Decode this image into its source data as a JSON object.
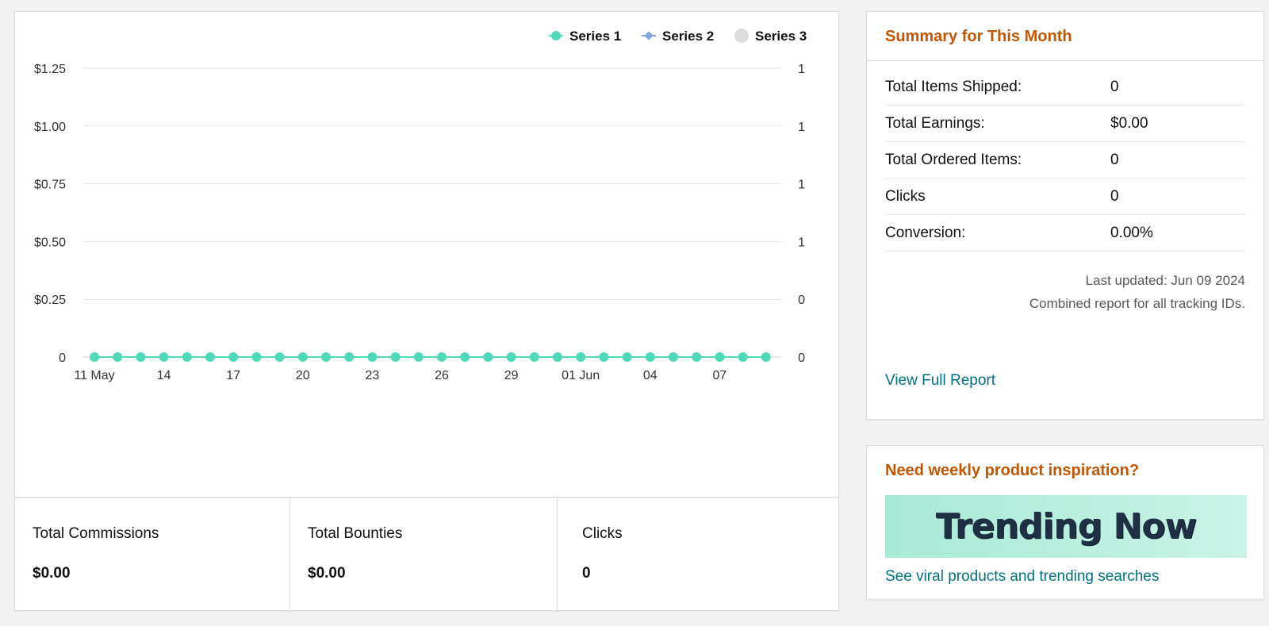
{
  "chart": {
    "legend": [
      {
        "name": "Series 1",
        "color": "#4fd9b8",
        "marker": "circle"
      },
      {
        "name": "Series 2",
        "color": "#7ea6e0",
        "marker": "diamond"
      },
      {
        "name": "Series 3",
        "color": "#dddddd",
        "marker": "circle"
      }
    ]
  },
  "chart_data": {
    "type": "line",
    "x": [
      "11 May",
      "12 May",
      "13 May",
      "14 May",
      "15 May",
      "16 May",
      "17 May",
      "18 May",
      "19 May",
      "20 May",
      "21 May",
      "22 May",
      "23 May",
      "24 May",
      "25 May",
      "26 May",
      "27 May",
      "28 May",
      "29 May",
      "30 May",
      "31 May",
      "01 Jun",
      "02 Jun",
      "03 Jun",
      "04 Jun",
      "05 Jun",
      "06 Jun",
      "07 Jun",
      "08 Jun",
      "09 Jun"
    ],
    "x_tick_labels": [
      "11 May",
      "14",
      "17",
      "20",
      "23",
      "26",
      "29",
      "01 Jun",
      "04",
      "07"
    ],
    "x_tick_indices": [
      0,
      3,
      6,
      9,
      12,
      15,
      18,
      21,
      24,
      27
    ],
    "y_tick_labels": [
      "0",
      "$0.25",
      "$0.50",
      "$0.75",
      "$1.00",
      "$1.25"
    ],
    "y2_tick_labels": [
      "0",
      "0",
      "1",
      "1",
      "1",
      "1"
    ],
    "ylim": [
      0,
      1.25
    ],
    "grid": true,
    "legend_position": "top-right",
    "series": [
      {
        "name": "Series 1",
        "values": [
          0,
          0,
          0,
          0,
          0,
          0,
          0,
          0,
          0,
          0,
          0,
          0,
          0,
          0,
          0,
          0,
          0,
          0,
          0,
          0,
          0,
          0,
          0,
          0,
          0,
          0,
          0,
          0,
          0,
          0
        ]
      }
    ]
  },
  "stats": [
    {
      "label": "Total Commissions",
      "value": "$0.00"
    },
    {
      "label": "Total Bounties",
      "value": "$0.00"
    },
    {
      "label": "Clicks",
      "value": "0"
    }
  ],
  "summary": {
    "title": "Summary for This Month",
    "rows": [
      {
        "label": "Total Items Shipped:",
        "value": "0"
      },
      {
        "label": "Total Earnings:",
        "value": "$0.00"
      },
      {
        "label": "Total Ordered Items:",
        "value": "0"
      },
      {
        "label": "Clicks",
        "value": "0"
      },
      {
        "label": "Conversion:",
        "value": "0.00%"
      }
    ],
    "last_updated": "Last updated: Jun 09 2024",
    "note": "Combined report for all tracking IDs.",
    "link": "View Full Report"
  },
  "promo": {
    "title": "Need weekly product inspiration?",
    "banner_text": "Trending Now",
    "link": "See viral products and trending searches"
  }
}
